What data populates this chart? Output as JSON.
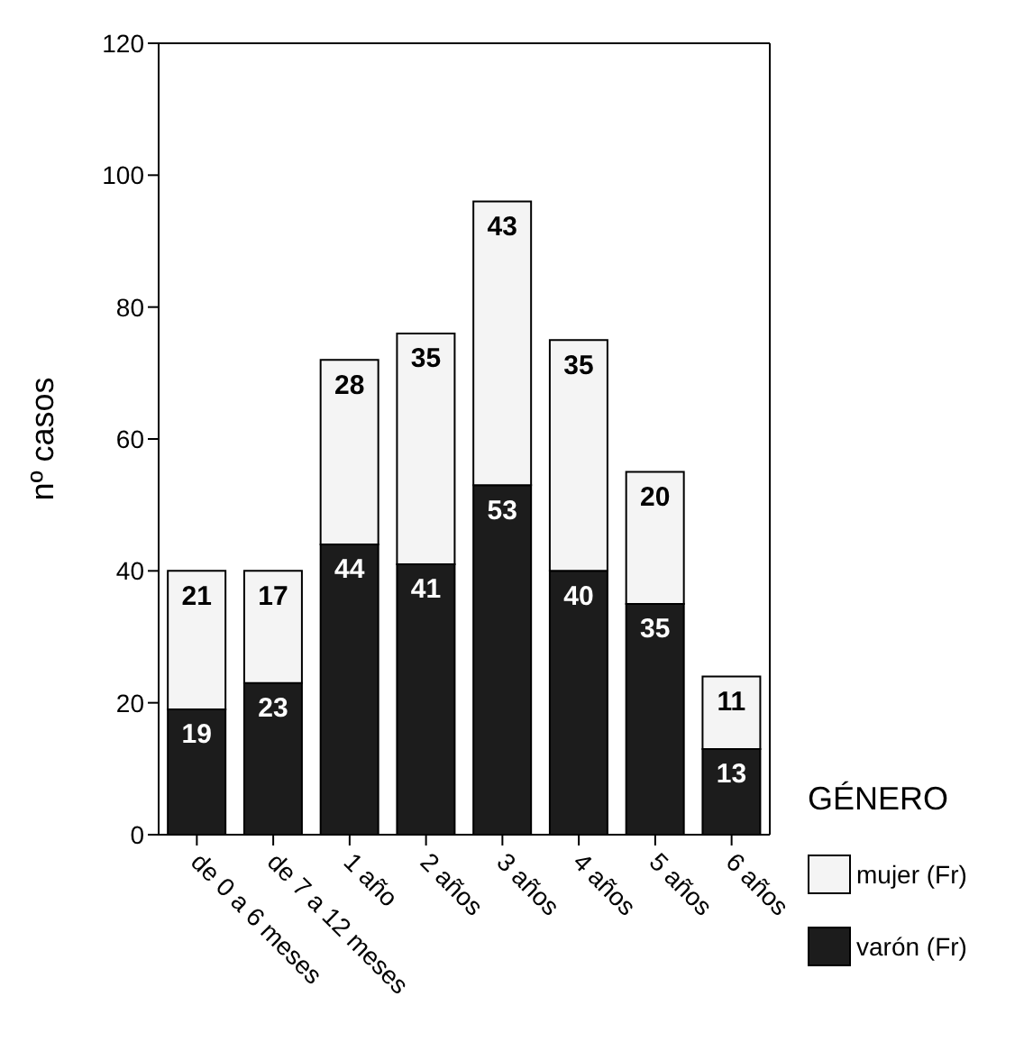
{
  "chart_data": {
    "type": "bar",
    "stacked": true,
    "ylabel": "nº casos",
    "legend_title": "GÉNERO",
    "legend": "right",
    "data_labels": true,
    "ylim": [
      0,
      120
    ],
    "yticks": [
      0,
      20,
      40,
      60,
      80,
      100,
      120
    ],
    "categories": [
      "de 0 a 6 meses",
      "de 7 a 12 meses",
      "1 año",
      "2 años",
      "3 años",
      "4 años",
      "5 años",
      "6 años"
    ],
    "series": [
      {
        "name": "varón (Fr)",
        "color": "#1c1c1c",
        "values": [
          19,
          23,
          44,
          41,
          53,
          40,
          35,
          13
        ]
      },
      {
        "name": "mujer (Fr)",
        "color": "#f4f4f4",
        "values": [
          21,
          17,
          28,
          35,
          43,
          35,
          20,
          11
        ]
      }
    ]
  }
}
